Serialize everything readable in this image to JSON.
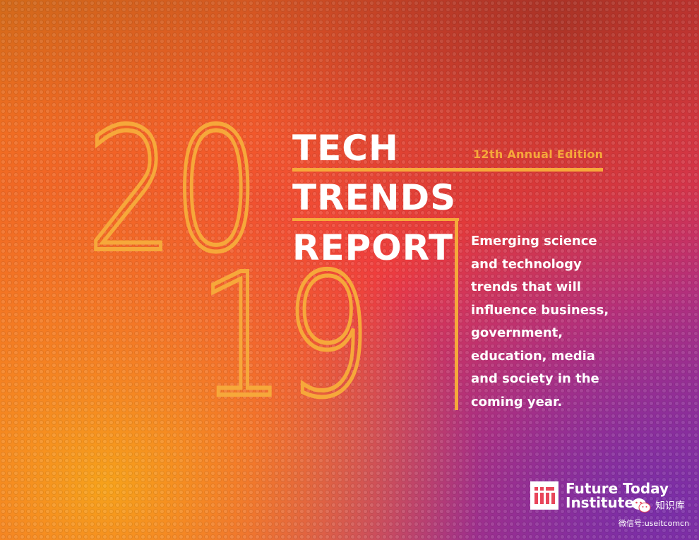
{
  "year": {
    "top": "20",
    "bottom": "19"
  },
  "title": {
    "line1": "TECH",
    "line2": "TRENDS",
    "line3": "REPORT"
  },
  "edition": "12th Annual Edition",
  "tagline": [
    "Emerging science",
    "and technology",
    "trends that will",
    "influence business,",
    "government,",
    "education, media",
    "and society in the",
    "coming year."
  ],
  "logo": {
    "line1": "Future Today",
    "line2": "Institute",
    "icon": "fti-logo-icon"
  },
  "watermark": {
    "label": "知识库",
    "sub": "微信号:useitcomcn",
    "icon": "wechat-icon"
  },
  "colors": {
    "accent": "#f6a83a",
    "text": "#ffffff"
  }
}
